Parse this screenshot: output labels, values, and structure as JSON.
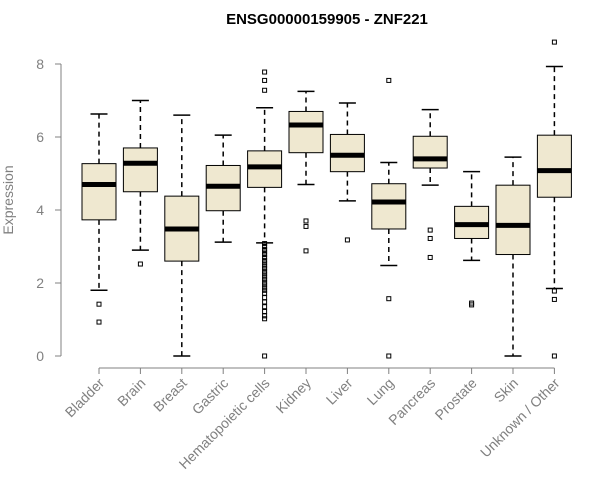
{
  "chart_data": {
    "type": "box",
    "title": "ENSG00000159905 - ZNF221",
    "ylabel": "Expression",
    "xlabel": "",
    "ylim": [
      0,
      8.2
    ],
    "yticks": [
      0,
      2,
      4,
      6,
      8
    ],
    "grid": false,
    "colors": {
      "box_fill": "#efe8d0",
      "box_stroke": "#000000",
      "axis": "#808080"
    },
    "categories": [
      "Bladder",
      "Brain",
      "Breast",
      "Gastric",
      "Hematopoietic cells",
      "Kidney",
      "Liver",
      "Lung",
      "Pancreas",
      "Prostate",
      "Skin",
      "Unknown / Other"
    ],
    "boxes": [
      {
        "category": "Bladder",
        "whisker_low": 1.8,
        "q1": 3.73,
        "median": 4.7,
        "q3": 5.27,
        "whisker_high": 6.63,
        "outliers": [
          1.42,
          0.93
        ]
      },
      {
        "category": "Brain",
        "whisker_low": 2.9,
        "q1": 4.5,
        "median": 5.28,
        "q3": 5.7,
        "whisker_high": 7.0,
        "outliers": [
          2.52
        ]
      },
      {
        "category": "Breast",
        "whisker_low": 0.0,
        "q1": 2.6,
        "median": 3.48,
        "q3": 4.38,
        "whisker_high": 6.6,
        "outliers": []
      },
      {
        "category": "Gastric",
        "whisker_low": 3.12,
        "q1": 3.98,
        "median": 4.65,
        "q3": 5.22,
        "whisker_high": 6.05,
        "outliers": []
      },
      {
        "category": "Hematopoietic cells",
        "whisker_low": 3.1,
        "q1": 4.62,
        "median": 5.18,
        "q3": 5.62,
        "whisker_high": 6.8,
        "outliers": [
          7.78,
          7.55,
          7.28,
          3.08,
          3.0,
          2.92,
          2.85,
          2.78,
          2.7,
          2.62,
          2.55,
          2.47,
          2.4,
          2.32,
          2.25,
          2.17,
          2.1,
          2.02,
          1.95,
          1.87,
          1.8,
          1.72,
          1.6,
          1.48,
          1.35,
          1.22,
          1.1,
          1.02,
          0.0
        ]
      },
      {
        "category": "Kidney",
        "whisker_low": 4.7,
        "q1": 5.57,
        "median": 6.33,
        "q3": 6.7,
        "whisker_high": 7.25,
        "outliers": [
          3.7,
          3.55,
          2.88
        ]
      },
      {
        "category": "Liver",
        "whisker_low": 4.25,
        "q1": 5.05,
        "median": 5.5,
        "q3": 6.07,
        "whisker_high": 6.93,
        "outliers": [
          3.18
        ]
      },
      {
        "category": "Lung",
        "whisker_low": 2.48,
        "q1": 3.48,
        "median": 4.22,
        "q3": 4.72,
        "whisker_high": 5.3,
        "outliers": [
          7.55,
          1.57,
          0.0
        ]
      },
      {
        "category": "Pancreas",
        "whisker_low": 4.68,
        "q1": 5.15,
        "median": 5.4,
        "q3": 6.02,
        "whisker_high": 6.75,
        "outliers": [
          3.45,
          3.22,
          2.7
        ]
      },
      {
        "category": "Prostate",
        "whisker_low": 2.62,
        "q1": 3.22,
        "median": 3.6,
        "q3": 4.1,
        "whisker_high": 5.05,
        "outliers": [
          1.45,
          1.4
        ]
      },
      {
        "category": "Skin",
        "whisker_low": 0.0,
        "q1": 2.78,
        "median": 3.58,
        "q3": 4.68,
        "whisker_high": 5.45,
        "outliers": []
      },
      {
        "category": "Unknown / Other",
        "whisker_low": 1.85,
        "q1": 4.35,
        "median": 5.08,
        "q3": 6.05,
        "whisker_high": 7.93,
        "outliers": [
          8.6,
          1.78,
          1.55,
          0.0
        ]
      }
    ]
  }
}
